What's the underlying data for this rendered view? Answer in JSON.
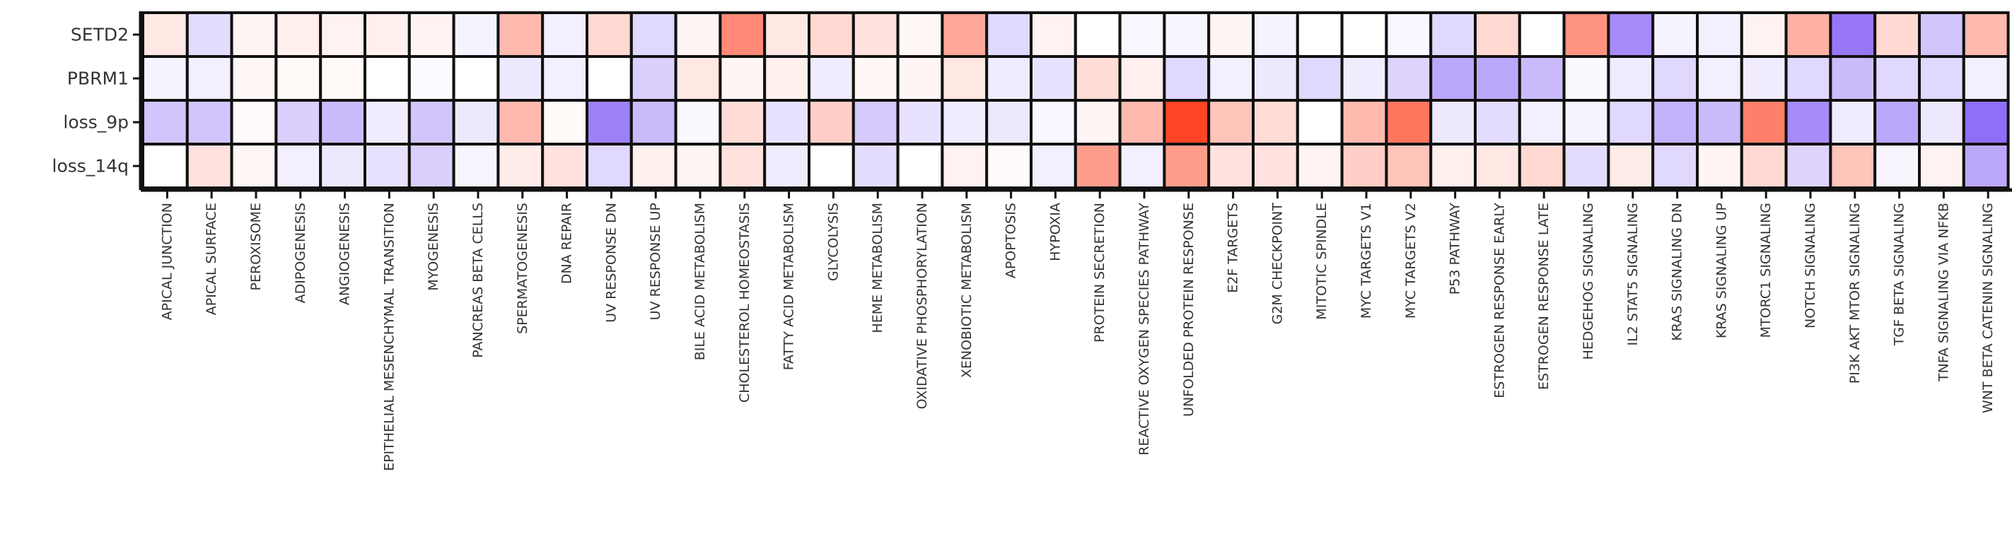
{
  "chart_data": {
    "type": "heatmap",
    "rows": [
      "SETD2",
      "PBRM1",
      "loss_9p",
      "loss_14q"
    ],
    "columns": [
      "APICAL JUNCTION",
      "APICAL SURFACE",
      "PEROXISOME",
      "ADIPOGENESIS",
      "ANGIOGENESIS",
      "EPITHELIAL MESENCHYMAL TRANSITION",
      "MYOGENESIS",
      "PANCREAS BETA CELLS",
      "SPERMATOGENESIS",
      "DNA REPAIR",
      "UV RESPONSE DN",
      "UV RESPONSE UP",
      "BILE ACID METABOLISM",
      "CHOLESTEROL HOMEOSTASIS",
      "FATTY ACID METABOLISM",
      "GLYCOLYSIS",
      "HEME METABOLISM",
      "OXIDATIVE PHOSPHORYLATION",
      "XENOBIOTIC METABOLISM",
      "APOPTOSIS",
      "HYPOXIA",
      "PROTEIN SECRETION",
      "REACTIVE OXYGEN SPECIES PATHWAY",
      "UNFOLDED PROTEIN RESPONSE",
      "E2F TARGETS",
      "G2M CHECKPOINT",
      "MITOTIC SPINDLE",
      "MYC TARGETS V1",
      "MYC TARGETS V2",
      "P53 PATHWAY",
      "ESTROGEN RESPONSE EARLY",
      "ESTROGEN RESPONSE LATE",
      "HEDGEHOG SIGNALING",
      "IL2 STAT5 SIGNALING",
      "KRAS SIGNALING DN",
      "KRAS SIGNALING UP",
      "MTORC1 SIGNALING",
      "NOTCH SIGNALING",
      "PI3K AKT MTOR SIGNALING",
      "TGF BETA SIGNALING",
      "TNFA SIGNALING VIA NFKB",
      "WNT BETA CATENIN SIGNALING"
    ],
    "values": [
      [
        0.12,
        -0.18,
        0.05,
        0.08,
        0.06,
        0.08,
        0.06,
        -0.06,
        0.35,
        -0.08,
        0.2,
        -0.2,
        0.05,
        0.6,
        0.12,
        0.2,
        0.15,
        0.04,
        0.45,
        -0.2,
        0.06,
        0.0,
        -0.04,
        -0.05,
        0.05,
        -0.06,
        0.0,
        0.0,
        -0.04,
        -0.2,
        0.2,
        0.0,
        0.55,
        -0.6,
        -0.06,
        -0.08,
        0.06,
        0.4,
        -0.7,
        0.2,
        -0.3,
        0.35
      ],
      [
        -0.06,
        -0.08,
        0.04,
        0.03,
        0.03,
        0.0,
        -0.02,
        0.0,
        -0.12,
        -0.08,
        0.0,
        -0.25,
        0.12,
        0.05,
        0.08,
        -0.1,
        0.04,
        0.05,
        0.12,
        -0.1,
        -0.15,
        0.18,
        0.08,
        -0.2,
        -0.08,
        -0.12,
        -0.2,
        -0.1,
        -0.22,
        -0.45,
        -0.45,
        -0.35,
        -0.03,
        -0.1,
        -0.2,
        -0.08,
        -0.1,
        -0.2,
        -0.35,
        -0.2,
        -0.2,
        -0.08
      ],
      [
        -0.3,
        -0.3,
        0.02,
        -0.25,
        -0.35,
        -0.1,
        -0.3,
        -0.12,
        0.35,
        0.03,
        -0.65,
        -0.35,
        -0.03,
        0.18,
        -0.15,
        0.25,
        -0.28,
        -0.15,
        -0.1,
        -0.12,
        -0.04,
        0.05,
        0.35,
        0.95,
        0.3,
        0.18,
        0.0,
        0.35,
        0.7,
        -0.12,
        -0.18,
        -0.08,
        -0.06,
        -0.2,
        -0.4,
        -0.35,
        0.65,
        -0.6,
        -0.1,
        -0.45,
        -0.12,
        -0.75
      ],
      [
        0.0,
        0.15,
        0.04,
        -0.08,
        -0.12,
        -0.15,
        -0.25,
        -0.05,
        0.1,
        0.15,
        -0.2,
        0.08,
        0.05,
        0.15,
        -0.1,
        0.0,
        -0.18,
        0.0,
        0.06,
        0.02,
        -0.08,
        0.5,
        -0.08,
        0.5,
        0.15,
        0.15,
        0.06,
        0.25,
        0.3,
        0.08,
        0.12,
        0.2,
        -0.18,
        0.1,
        -0.2,
        0.05,
        0.2,
        -0.22,
        0.3,
        -0.05,
        0.06,
        -0.45
      ]
    ],
    "vmin": -1,
    "vmax": 1,
    "colors": {
      "negative": "#6a3df5",
      "neutral": "#ffffff",
      "positive": "#ff3b1a",
      "grid": "#111111"
    }
  }
}
